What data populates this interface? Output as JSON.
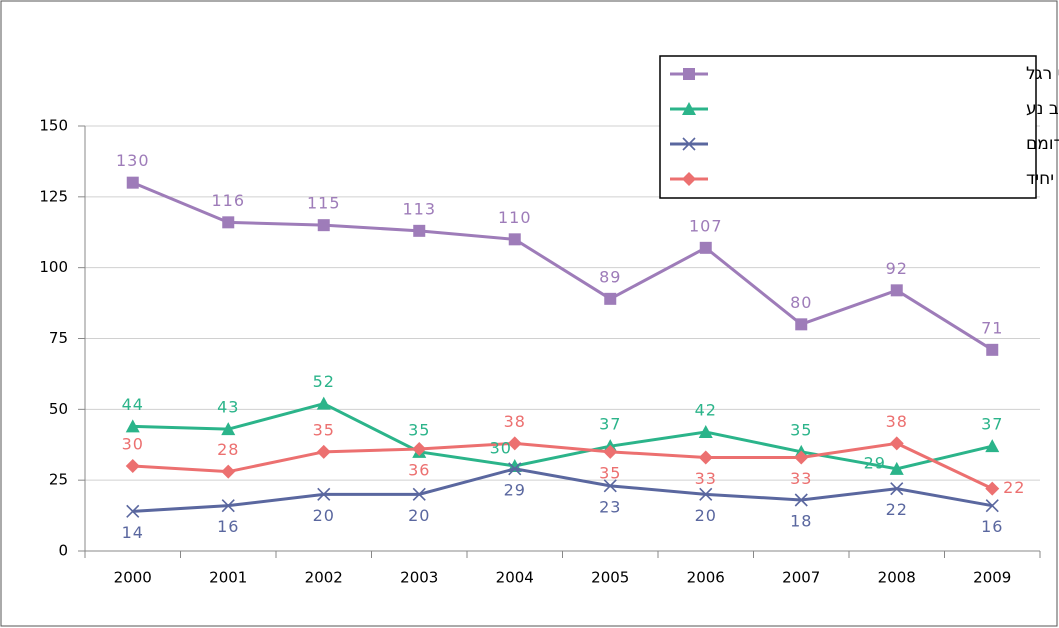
{
  "chart_data": {
    "type": "line",
    "categories": [
      "2000",
      "2001",
      "2002",
      "2003",
      "2004",
      "2005",
      "2006",
      "2007",
      "2008",
      "2009"
    ],
    "series": [
      {
        "name": "פגיעה בהולכי רגל",
        "color": "#9e7cb9",
        "values": [
          130,
          116,
          115,
          113,
          110,
          89,
          107,
          80,
          92,
          71
        ]
      },
      {
        "name": "התנגשויות ברכב נע",
        "color": "#2bb48a",
        "values": [
          44,
          43,
          52,
          35,
          30,
          37,
          42,
          35,
          29,
          37
        ]
      },
      {
        "name": "התנגשויות ברכב ובעצם דומם",
        "color": "#5a679f",
        "values": [
          14,
          16,
          20,
          20,
          29,
          23,
          20,
          18,
          22,
          16
        ]
      },
      {
        "name": "תאונות רכב יחיד",
        "color": "#ec7070",
        "values": [
          30,
          28,
          35,
          36,
          38,
          35,
          33,
          33,
          38,
          22
        ]
      }
    ],
    "ylim": [
      0,
      150
    ],
    "yticks": [
      0,
      25,
      50,
      75,
      100,
      125,
      150
    ],
    "grid": true
  }
}
